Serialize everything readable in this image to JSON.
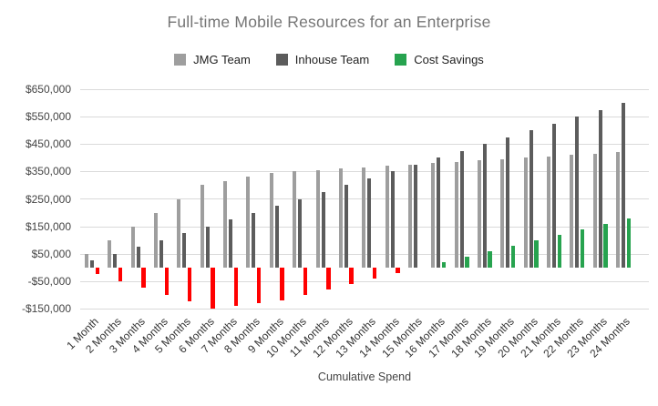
{
  "chart_data": {
    "type": "bar",
    "title": "Full-time Mobile Resources for an Enterprise",
    "xlabel": "Cumulative Spend",
    "ylabel": "",
    "grid": true,
    "legend_position": "top",
    "ylim": [
      -150000,
      650000
    ],
    "y_ticks": [
      {
        "value": 650000,
        "label": "$650,000"
      },
      {
        "value": 550000,
        "label": "$550,000"
      },
      {
        "value": 450000,
        "label": "$450,000"
      },
      {
        "value": 350000,
        "label": "$350,000"
      },
      {
        "value": 250000,
        "label": "$250,000"
      },
      {
        "value": 150000,
        "label": "$150,000"
      },
      {
        "value": 50000,
        "label": "$50,000"
      },
      {
        "value": -50000,
        "label": "-$50,000"
      },
      {
        "value": -150000,
        "label": "-$150,000"
      }
    ],
    "categories": [
      "1 Month",
      "2 Months",
      "3 Months",
      "4 Months",
      "5 Months",
      "6 Months",
      "7 Months",
      "8 Months",
      "9 Months",
      "10 Months",
      "11 Months",
      "12 Months",
      "13 Months",
      "14 Months",
      "15 Months",
      "16 Months",
      "17 Months",
      "18 Months",
      "19 Months",
      "20 Months",
      "21 Months",
      "22 Months",
      "23 Months",
      "24 Months"
    ],
    "series": [
      {
        "name": "JMG Team",
        "color": "#9e9e9e",
        "values": [
          50000,
          100000,
          150000,
          200000,
          250000,
          300000,
          315000,
          330000,
          345000,
          350000,
          355000,
          360000,
          365000,
          370000,
          375000,
          380000,
          385000,
          390000,
          395000,
          400000,
          405000,
          410000,
          415000,
          420000
        ]
      },
      {
        "name": "Inhouse Team",
        "color": "#5c5c5c",
        "values": [
          25000,
          50000,
          75000,
          100000,
          125000,
          150000,
          175000,
          200000,
          225000,
          250000,
          275000,
          300000,
          325000,
          350000,
          375000,
          400000,
          425000,
          450000,
          475000,
          500000,
          525000,
          550000,
          575000,
          600000
        ]
      },
      {
        "name": "Cost Savings",
        "color": "#27a34f",
        "color_negative": "#ff0000",
        "values": [
          -25000,
          -50000,
          -75000,
          -100000,
          -125000,
          -150000,
          -140000,
          -130000,
          -120000,
          -100000,
          -80000,
          -60000,
          -40000,
          -20000,
          0,
          20000,
          40000,
          60000,
          80000,
          100000,
          120000,
          140000,
          160000,
          180000
        ]
      }
    ],
    "colors": {
      "title_text": "#757575",
      "axis_text": "#444444",
      "gridline": "#dadada"
    }
  }
}
